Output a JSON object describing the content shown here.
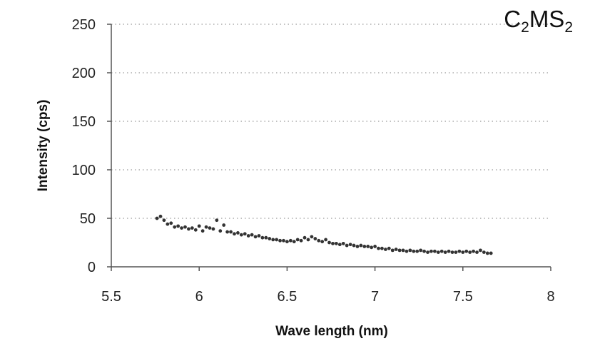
{
  "chart_data": {
    "type": "scatter",
    "title": "",
    "sample_label": {
      "parts": [
        "C",
        "2",
        "MS",
        "2"
      ]
    },
    "xlabel": "Wave length (nm)",
    "ylabel": "Intensity (cps)",
    "xlim": [
      5.5,
      8
    ],
    "ylim": [
      0,
      250
    ],
    "xticks": [
      "5.5",
      "6",
      "6.5",
      "7",
      "7.5",
      "8"
    ],
    "yticks": [
      "0",
      "50",
      "100",
      "150",
      "200",
      "250"
    ],
    "grid": "horizontal dotted",
    "marker_color": "#333333",
    "series": [
      {
        "x": [
          5.76,
          5.78,
          5.8,
          5.82,
          5.84,
          5.86,
          5.88,
          5.9,
          5.92,
          5.94,
          5.96,
          5.98,
          6.0,
          6.02,
          6.04,
          6.06,
          6.08,
          6.1,
          6.12,
          6.14,
          6.16,
          6.18,
          6.2,
          6.22,
          6.24,
          6.26,
          6.28,
          6.3,
          6.32,
          6.34,
          6.36,
          6.38,
          6.4,
          6.42,
          6.44,
          6.46,
          6.48,
          6.5,
          6.52,
          6.54,
          6.56,
          6.58,
          6.6,
          6.62,
          6.64,
          6.66,
          6.68,
          6.7,
          6.72,
          6.74,
          6.76,
          6.78,
          6.8,
          6.82,
          6.84,
          6.86,
          6.88,
          6.9,
          6.92,
          6.94,
          6.96,
          6.98,
          7.0,
          7.02,
          7.04,
          7.06,
          7.08,
          7.1,
          7.12,
          7.14,
          7.16,
          7.18,
          7.2,
          7.22,
          7.24,
          7.26,
          7.28,
          7.3,
          7.32,
          7.34,
          7.36,
          7.38,
          7.4,
          7.42,
          7.44,
          7.46,
          7.48,
          7.5,
          7.52,
          7.54,
          7.56,
          7.58,
          7.6,
          7.62,
          7.64,
          7.66
        ],
        "y": [
          50,
          52,
          48,
          44,
          45,
          41,
          42,
          40,
          41,
          39,
          40,
          38,
          42,
          37,
          41,
          40,
          39,
          48,
          37,
          43,
          36,
          36,
          34,
          35,
          33,
          34,
          32,
          33,
          31,
          32,
          30,
          30,
          29,
          28,
          28,
          27,
          27,
          26,
          27,
          26,
          28,
          27,
          30,
          28,
          31,
          29,
          27,
          26,
          28,
          25,
          24,
          24,
          23,
          24,
          22,
          23,
          22,
          21,
          22,
          21,
          21,
          20,
          21,
          19,
          19,
          18,
          19,
          17,
          18,
          17,
          17,
          16,
          17,
          16,
          16,
          17,
          16,
          15,
          16,
          16,
          15,
          16,
          15,
          16,
          15,
          15,
          16,
          15,
          16,
          15,
          16,
          15,
          17,
          15,
          14,
          14
        ]
      }
    ]
  }
}
